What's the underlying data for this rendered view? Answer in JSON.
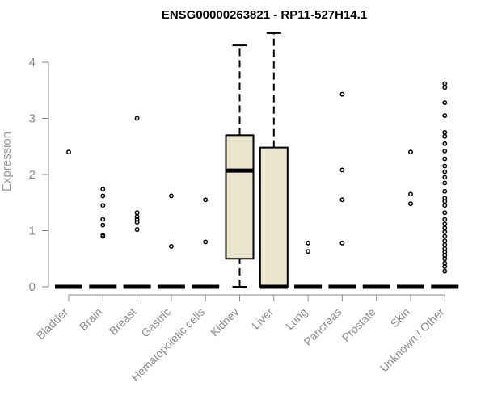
{
  "chart_data": {
    "type": "box",
    "title": "ENSG00000263821 - RP11-527H14.1",
    "xlabel": "",
    "ylabel": "Expression",
    "ylim": [
      0,
      4.55
    ],
    "yticks": [
      0,
      1,
      2,
      3,
      4
    ],
    "grid": false,
    "legend": "none",
    "colors": {
      "box_fill": "#ede6cf",
      "stroke": "#000000",
      "axis": "#888888"
    },
    "categories": [
      "Bladder",
      "Brain",
      "Breast",
      "Gastric",
      "Hematopoietic cells",
      "Kidney",
      "Liver",
      "Lung",
      "Pancreas",
      "Prostate",
      "Skin",
      "Unknown / Other"
    ],
    "boxes": [
      {
        "category": "Bladder",
        "q1": 0,
        "median": 0,
        "q3": 0,
        "whisker_low": 0,
        "whisker_high": 0,
        "outliers": [
          2.4
        ]
      },
      {
        "category": "Brain",
        "q1": 0,
        "median": 0,
        "q3": 0,
        "whisker_low": 0,
        "whisker_high": 0,
        "outliers": [
          0.9,
          0.92,
          1.1,
          1.2,
          1.45,
          1.62,
          1.74
        ]
      },
      {
        "category": "Breast",
        "q1": 0,
        "median": 0,
        "q3": 0,
        "whisker_low": 0,
        "whisker_high": 0,
        "outliers": [
          1.02,
          1.15,
          1.2,
          1.25,
          1.32,
          3.0
        ]
      },
      {
        "category": "Gastric",
        "q1": 0,
        "median": 0,
        "q3": 0,
        "whisker_low": 0,
        "whisker_high": 0,
        "outliers": [
          0.72,
          1.62
        ]
      },
      {
        "category": "Hematopoietic cells",
        "q1": 0,
        "median": 0,
        "q3": 0,
        "whisker_low": 0,
        "whisker_high": 0,
        "outliers": [
          0.8,
          1.55
        ]
      },
      {
        "category": "Kidney",
        "q1": 0.5,
        "median": 2.07,
        "q3": 2.7,
        "whisker_low": 0,
        "whisker_high": 4.3,
        "outliers": []
      },
      {
        "category": "Liver",
        "q1": 0,
        "median": 0,
        "q3": 2.48,
        "whisker_low": 0,
        "whisker_high": 4.52,
        "outliers": []
      },
      {
        "category": "Lung",
        "q1": 0,
        "median": 0,
        "q3": 0,
        "whisker_low": 0,
        "whisker_high": 0,
        "outliers": [
          0.63,
          0.78
        ]
      },
      {
        "category": "Pancreas",
        "q1": 0,
        "median": 0,
        "q3": 0,
        "whisker_low": 0,
        "whisker_high": 0,
        "outliers": [
          0.78,
          1.55,
          2.08,
          3.43
        ]
      },
      {
        "category": "Prostate",
        "q1": 0,
        "median": 0,
        "q3": 0,
        "whisker_low": 0,
        "whisker_high": 0,
        "outliers": []
      },
      {
        "category": "Skin",
        "q1": 0,
        "median": 0,
        "q3": 0,
        "whisker_low": 0,
        "whisker_high": 0,
        "outliers": [
          1.48,
          1.65,
          2.4
        ]
      },
      {
        "category": "Unknown / Other",
        "q1": 0,
        "median": 0,
        "q3": 0,
        "whisker_low": 0,
        "whisker_high": 0,
        "outliers": [
          0.28,
          0.36,
          0.42,
          0.5,
          0.56,
          0.62,
          0.68,
          0.75,
          0.82,
          0.9,
          0.98,
          1.05,
          1.12,
          1.2,
          1.32,
          1.45,
          1.52,
          1.58,
          1.7,
          1.85,
          1.95,
          2.05,
          2.15,
          2.28,
          2.42,
          2.55,
          2.68,
          2.75,
          3.05,
          3.28,
          3.55,
          3.62
        ]
      }
    ]
  }
}
